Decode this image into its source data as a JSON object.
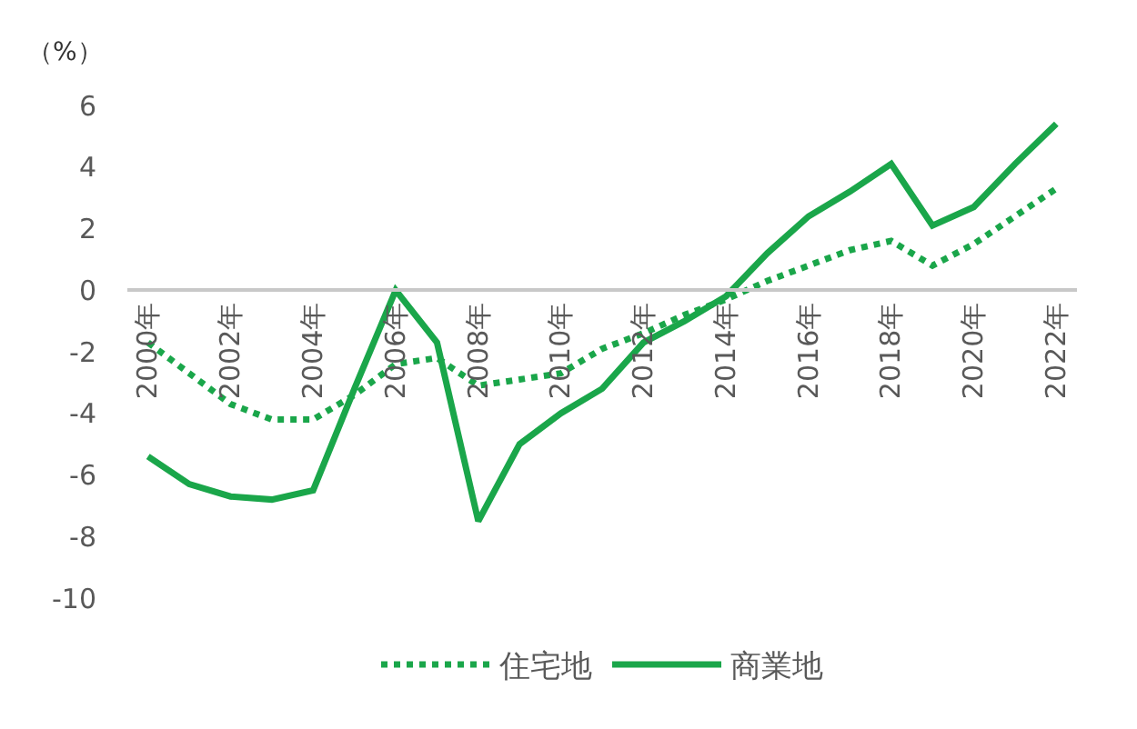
{
  "chart_data": {
    "type": "line",
    "ylabel": "（%）",
    "x": [
      2000,
      2001,
      2002,
      2003,
      2004,
      2005,
      2006,
      2007,
      2008,
      2009,
      2010,
      2011,
      2012,
      2013,
      2014,
      2015,
      2016,
      2017,
      2018,
      2019,
      2020,
      2021,
      2022
    ],
    "series": [
      {
        "name": "住宅地",
        "color": "#1aa64a",
        "line_style": "dotted",
        "values": [
          -1.7,
          -2.7,
          -3.7,
          -4.2,
          -4.2,
          -3.4,
          -2.4,
          -2.2,
          -3.1,
          -2.9,
          -2.7,
          -1.9,
          -1.4,
          -0.8,
          -0.3,
          0.3,
          0.8,
          1.3,
          1.6,
          0.8,
          1.5,
          2.4,
          3.3
        ]
      },
      {
        "name": "商業地",
        "color": "#1aa64a",
        "line_style": "solid",
        "values": [
          -5.4,
          -6.3,
          -6.7,
          -6.8,
          -6.5,
          -3.2,
          0.0,
          -1.7,
          -7.5,
          -5.0,
          -4.0,
          -3.2,
          -1.7,
          -1.0,
          -0.2,
          1.2,
          2.4,
          3.2,
          4.1,
          2.1,
          2.7,
          4.1,
          5.4
        ]
      }
    ],
    "xlim": [
      1999.5,
      2022.5
    ],
    "xticks": [
      {
        "value": 2000,
        "label": "2000年"
      },
      {
        "value": 2002,
        "label": "2002年"
      },
      {
        "value": 2004,
        "label": "2004年"
      },
      {
        "value": 2006,
        "label": "2006年"
      },
      {
        "value": 2008,
        "label": "2008年"
      },
      {
        "value": 2010,
        "label": "2010年"
      },
      {
        "value": 2012,
        "label": "2012年"
      },
      {
        "value": 2014,
        "label": "2014年"
      },
      {
        "value": 2016,
        "label": "2016年"
      },
      {
        "value": 2018,
        "label": "2018年"
      },
      {
        "value": 2020,
        "label": "2020年"
      },
      {
        "value": 2022,
        "label": "2022年"
      }
    ],
    "ylim": [
      -10,
      6
    ],
    "yticks": [
      -10,
      -8,
      -6,
      -4,
      -2,
      0,
      2,
      4,
      6
    ],
    "legend": "bottom",
    "marker": "none"
  }
}
